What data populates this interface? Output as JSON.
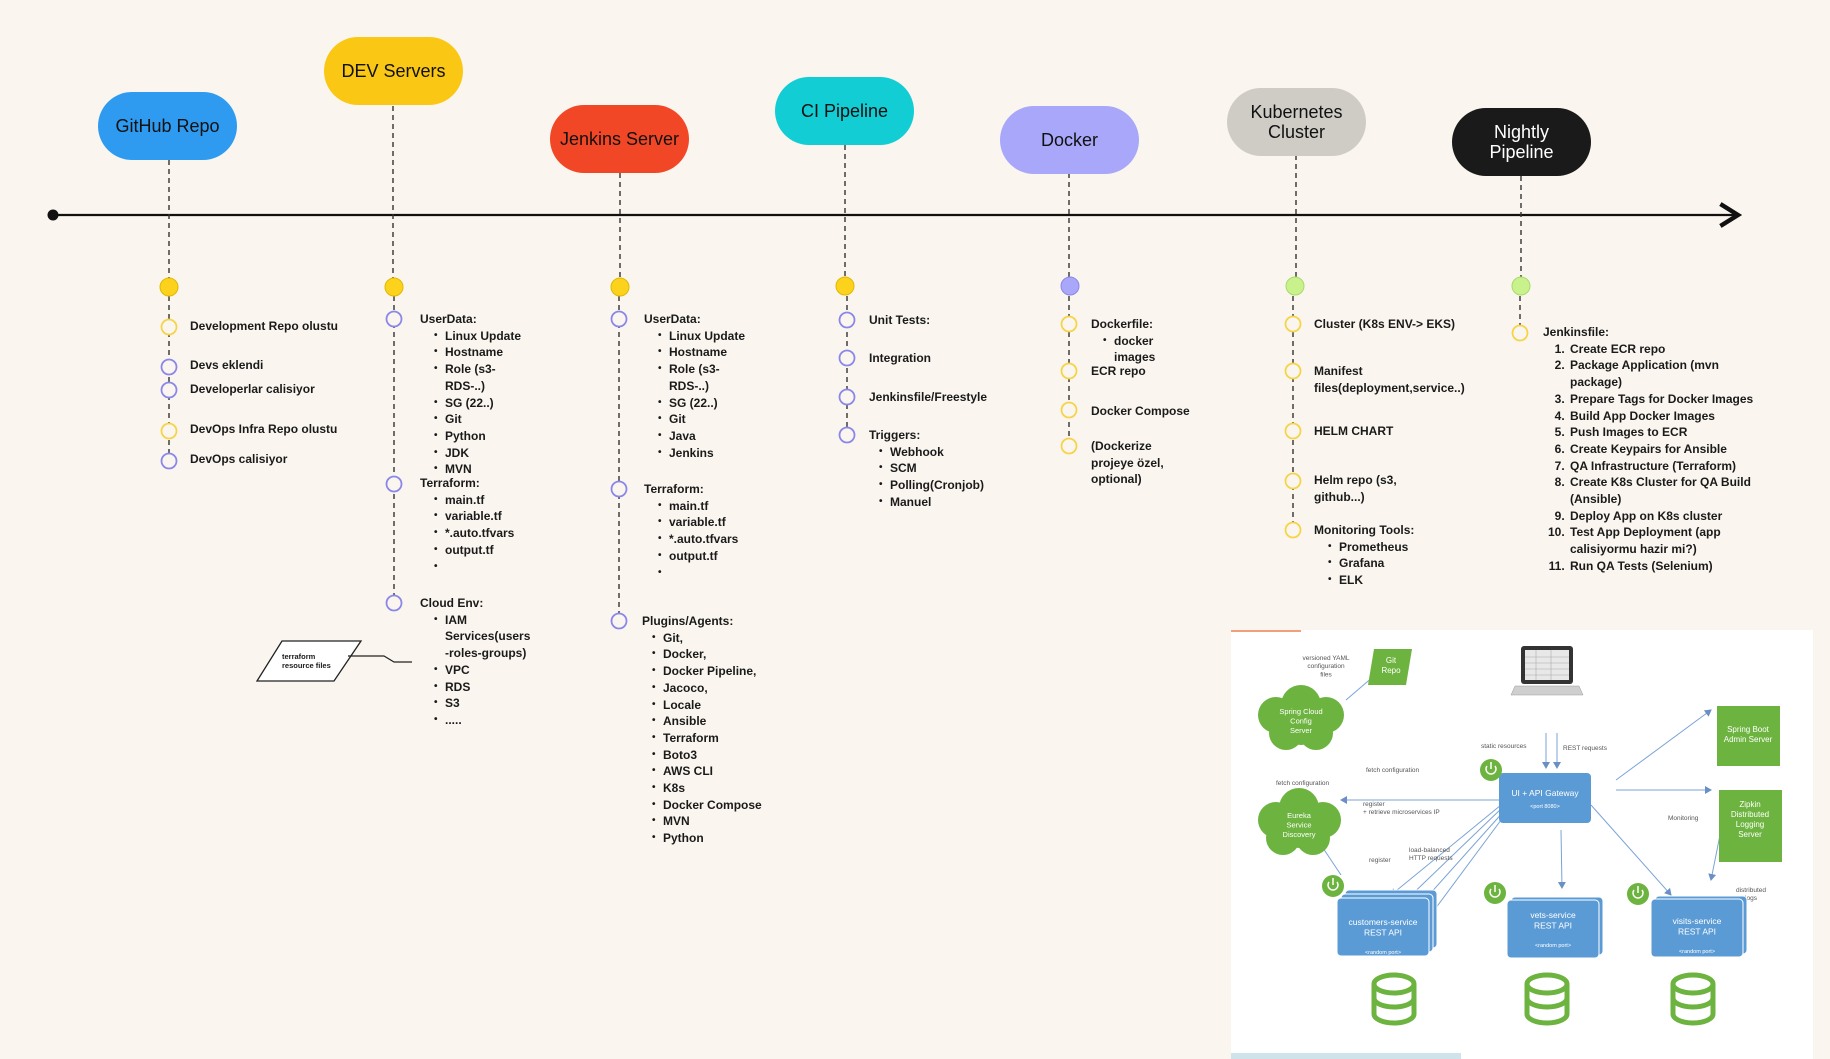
{
  "stages": [
    {
      "label": "GitHub Repo",
      "color": "#2f9bf0",
      "text_color": "#111111"
    },
    {
      "label": "DEV Servers",
      "color": "#fac715",
      "text_color": "#111111"
    },
    {
      "label": "Jenkins Server",
      "color": "#f24726",
      "text_color": "#111111"
    },
    {
      "label": "CI Pipeline",
      "color": "#12cdd4",
      "text_color": "#111111"
    },
    {
      "label": "Docker",
      "color": "#a8a7fa",
      "text_color": "#111111"
    },
    {
      "label": "Kubernetes\nCluster",
      "color": "#cfccc6",
      "text_color": "#111111"
    },
    {
      "label": "Nightly\nPipeline",
      "color": "#1a1a1a",
      "text_color": "#ffffff"
    }
  ],
  "github": {
    "items": [
      "Development Repo olustu",
      "Devs eklendi",
      "Developerlar calisiyor",
      "DevOps Infra Repo olustu",
      "DevOps calisiyor"
    ]
  },
  "dev": {
    "userdata_title": "UserData:",
    "userdata_items": [
      "Linux Update",
      "Hostname",
      "Role (s3-\nRDS-..)",
      "SG (22..)",
      "Git",
      "Python",
      "JDK",
      "MVN"
    ],
    "terraform_title": "Terraform:",
    "terraform_items": [
      "main.tf",
      "variable.tf",
      "*.auto.tfvars",
      "output.tf",
      ""
    ],
    "cloud_title": "Cloud Env:",
    "cloud_items": [
      "IAM\nServices(users\n-roles-groups)",
      "VPC",
      "RDS",
      "S3",
      "....."
    ],
    "note": "terraform\nresource files"
  },
  "jenkins": {
    "userdata_title": "UserData:",
    "userdata_items": [
      "Linux Update",
      "Hostname",
      "Role (s3-\nRDS-..)",
      "SG (22..)",
      "Git",
      "Java",
      "Jenkins"
    ],
    "terraform_title": "Terraform:",
    "terraform_items": [
      "main.tf",
      "variable.tf",
      "*.auto.tfvars",
      "output.tf",
      ""
    ],
    "plugins_title": "Plugins/Agents:",
    "plugins_items": [
      "Git,",
      "Docker,",
      "Docker Pipeline,",
      "Jacoco,",
      "Locale",
      "Ansible",
      "Terraform",
      "Boto3",
      "AWS CLI",
      "K8s",
      "Docker Compose",
      "MVN",
      "Python"
    ]
  },
  "ci": {
    "items": [
      "Unit Tests:",
      "Integration",
      "Jenkinsfile/Freestyle"
    ],
    "triggers_title": "Triggers:",
    "triggers_items": [
      "Webhook",
      "SCM",
      "Polling(Cronjob)",
      "Manuel"
    ]
  },
  "docker": {
    "dockerfile_title": "Dockerfile:",
    "dockerfile_items": [
      "docker\nimages"
    ],
    "items": [
      "ECR repo",
      "Docker Compose",
      "(Dockerize\nprojeye özel,\noptional)"
    ]
  },
  "k8s": {
    "items": [
      "Cluster (K8s ENV-> EKS)",
      "Manifest\nfiles(deployment,service..)",
      "HELM CHART",
      "Helm repo (s3,\ngithub...)"
    ],
    "monitoring_title": "Monitoring Tools:",
    "monitoring_items": [
      "Prometheus",
      "Grafana",
      "ELK"
    ]
  },
  "nightly": {
    "title": "Jenkinsfile:",
    "steps": [
      "Create ECR repo",
      "Package Application (mvn package)",
      "Prepare Tags for Docker Images",
      "Build App Docker Images",
      "Push Images to ECR",
      "Create Keypairs for Ansible",
      "QA Infrastructure (Terraform)",
      "Create K8s Cluster for QA Build (Ansible)",
      "Deploy App on K8s cluster",
      "Test App Deployment (app calisiyormu hazir mi?)",
      "Run QA Tests (Selenium)"
    ]
  },
  "arch": {
    "git_repo": "Git\nRepo",
    "versioned_yaml": "versioned YAML\nconfiguration\nfiles",
    "config_server": "Spring Cloud\nConfig\nServer",
    "fetch_configuration": "fetch configuration",
    "static_resources": "static resources",
    "rest_requests": "REST requests",
    "gateway": "UI + API Gateway",
    "gateway_port": "<port 8080>",
    "eureka": "Eureka\nService\nDiscovery",
    "register_retrieve": "register\n+ retrieve microservices IP",
    "register": "register",
    "load_balanced": "load-balanced\nHTTP requests",
    "admin_server": "Spring Boot\nAdmin Server",
    "monitoring": "Monitoring",
    "zipkin": "Zipkin\nDistributed\nLogging\nServer",
    "distributed_logs": "distributed\nlogs",
    "customers": "customers-service\nREST API",
    "vets": "vets-service\nREST API",
    "visits": "visits-service\nREST API",
    "random_port": "<random port>",
    "green": "#6db33f",
    "blue": "#5b9bd5"
  },
  "colors": {
    "yellow_dot": "#fcd21d",
    "purple_dot": "#a8a7fa",
    "green_dot": "#c9f28c",
    "hollow_yellow": "#f5d44a",
    "hollow_purple": "#8b87e8"
  }
}
